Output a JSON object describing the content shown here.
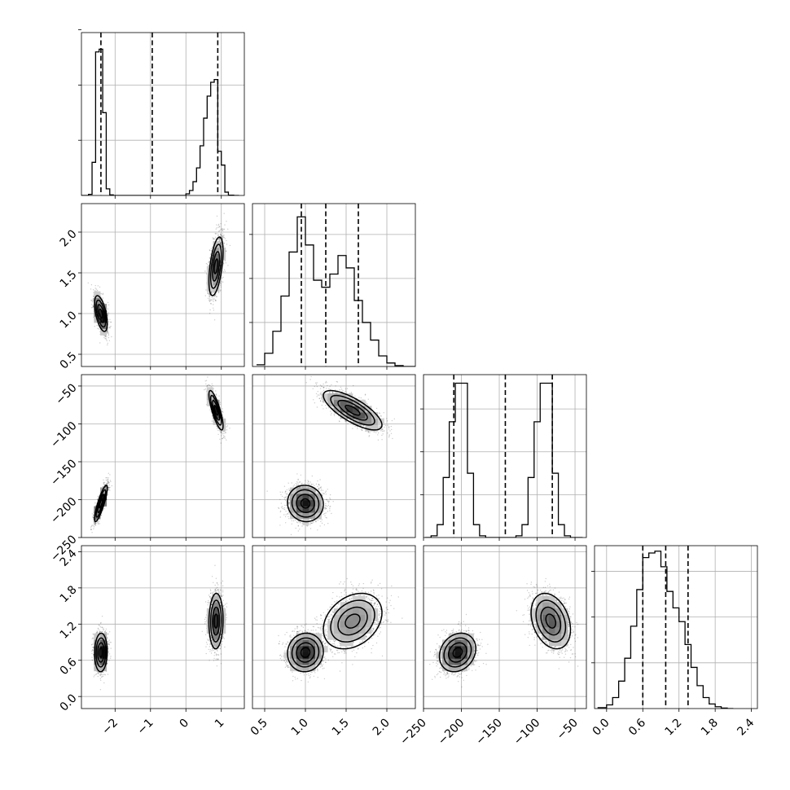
{
  "chart_data": {
    "type": "corner",
    "title": "",
    "parameters": [
      "",
      "",
      "",
      ""
    ],
    "ranges": [
      [
        -2.95,
        1.65
      ],
      [
        0.35,
        2.35
      ],
      [
        -250,
        -35
      ],
      [
        -0.2,
        2.5
      ]
    ],
    "diag_yticks": [
      [
        10000,
        20000,
        30000
      ],
      [
        5000,
        10000,
        15000
      ],
      [
        5000,
        10000,
        15000
      ],
      [
        5000,
        10000,
        15000
      ]
    ],
    "diag_ymax": [
      29500,
      18500,
      19000,
      17800
    ],
    "ticks": [
      {
        "values": [
          -2,
          -1,
          0,
          1
        ],
        "labels": [
          "−2",
          "−1",
          "0",
          "1"
        ]
      },
      {
        "values": [
          0.5,
          1.0,
          1.5,
          2.0
        ],
        "labels": [
          "0.5",
          "1.0",
          "1.5",
          "2.0"
        ]
      },
      {
        "values": [
          -250,
          -200,
          -150,
          -100,
          -50
        ],
        "labels": [
          "−250",
          "−200",
          "−150",
          "−100",
          "−50"
        ]
      },
      {
        "values": [
          0.0,
          0.6,
          1.2,
          1.8,
          2.4
        ],
        "labels": [
          "0.0",
          "0.6",
          "1.2",
          "1.8",
          "2.4"
        ]
      }
    ],
    "quantiles": [
      [
        -2.4,
        -0.95,
        0.9
      ],
      [
        0.95,
        1.25,
        1.65
      ],
      [
        -210,
        -142,
        -80
      ],
      [
        0.6,
        0.98,
        1.35
      ]
    ],
    "histograms": [
      {
        "edges": [
          -2.95,
          -2.75,
          -2.65,
          -2.55,
          -2.45,
          -2.35,
          -2.25,
          -2.15,
          -2.05,
          -0.2,
          0.0,
          0.1,
          0.2,
          0.3,
          0.4,
          0.5,
          0.6,
          0.7,
          0.8,
          0.9,
          1.0,
          1.1,
          1.2,
          1.35,
          1.5
        ],
        "counts": [
          0,
          200,
          6000,
          26000,
          26500,
          15000,
          1200,
          100,
          0,
          0,
          300,
          900,
          2500,
          5000,
          9000,
          14000,
          18000,
          20500,
          21000,
          8000,
          5500,
          600,
          50,
          0
        ]
      },
      {
        "edges": [
          0.4,
          0.5,
          0.6,
          0.7,
          0.8,
          0.9,
          1.0,
          1.1,
          1.2,
          1.3,
          1.4,
          1.5,
          1.6,
          1.7,
          1.8,
          1.9,
          2.0,
          2.1,
          2.2,
          2.35
        ],
        "counts": [
          200,
          1500,
          4000,
          8000,
          13000,
          17000,
          13800,
          9800,
          9000,
          10500,
          12600,
          11200,
          7500,
          5000,
          3000,
          1200,
          400,
          100,
          0
        ]
      },
      {
        "edges": [
          -248,
          -240,
          -232,
          -224,
          -216,
          -208,
          -200,
          -192,
          -184,
          -176,
          -168,
          -160,
          -152,
          -144,
          -136,
          -128,
          -120,
          -112,
          -104,
          -96,
          -88,
          -80,
          -72,
          -64,
          -56,
          -48,
          -40
        ],
        "counts": [
          0,
          200,
          1500,
          7000,
          13500,
          18000,
          18000,
          7500,
          1500,
          200,
          0,
          0,
          0,
          0,
          0,
          200,
          1500,
          7000,
          13500,
          18000,
          18000,
          7500,
          1500,
          200,
          0,
          0
        ]
      },
      {
        "edges": [
          -0.15,
          0.0,
          0.1,
          0.2,
          0.3,
          0.4,
          0.5,
          0.6,
          0.7,
          0.8,
          0.9,
          1.0,
          1.1,
          1.2,
          1.3,
          1.4,
          1.5,
          1.6,
          1.7,
          1.8,
          1.9,
          2.0,
          2.1
        ],
        "counts": [
          100,
          400,
          1200,
          3000,
          5500,
          9000,
          13000,
          16500,
          17000,
          17200,
          15500,
          12800,
          11000,
          9500,
          7000,
          4500,
          2500,
          1200,
          500,
          200,
          50,
          0
        ]
      }
    ],
    "modes": [
      {
        "weight": 0.5,
        "mean": [
          -2.4,
          1.0,
          -205,
          0.73
        ],
        "sd": [
          0.09,
          0.11,
          12,
          0.16
        ],
        "rho": [
          [
            1,
            -0.55,
            0.85,
            0.05
          ],
          [
            -0.55,
            1,
            -0.05,
            0.05
          ],
          [
            0.85,
            -0.05,
            1,
            0.2
          ],
          [
            0.05,
            0.05,
            0.2,
            1
          ]
        ]
      },
      {
        "weight": 0.5,
        "mean": [
          0.85,
          1.58,
          -82,
          1.25
        ],
        "sd": [
          0.1,
          0.18,
          13,
          0.23
        ],
        "rho": [
          [
            1,
            0.5,
            -0.8,
            0.05
          ],
          [
            0.5,
            1,
            -0.75,
            0.3
          ],
          [
            -0.8,
            -0.75,
            1,
            -0.3
          ],
          [
            0.05,
            0.3,
            -0.3,
            1
          ]
        ]
      }
    ]
  }
}
